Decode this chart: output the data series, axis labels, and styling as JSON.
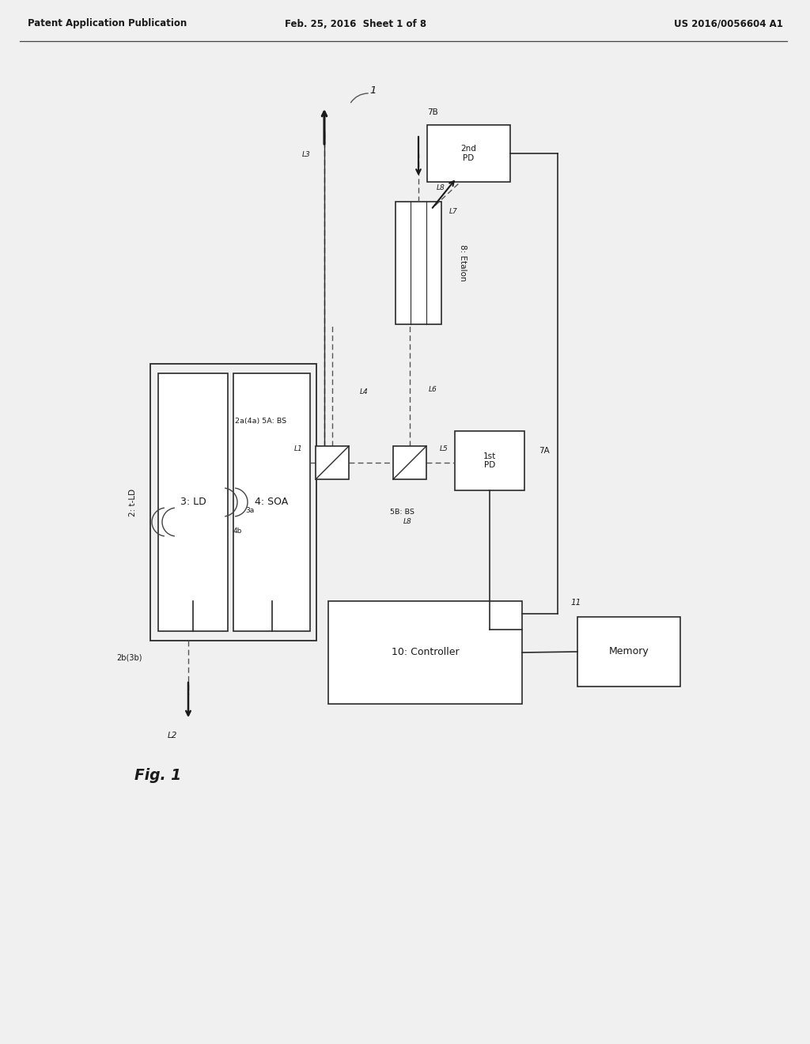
{
  "bg_color": "#f0f0f0",
  "header_left": "Patent Application Publication",
  "header_center": "Feb. 25, 2016  Sheet 1 of 8",
  "header_right": "US 2016/0056604 A1",
  "fig_label": "Fig. 1",
  "system_label": "1",
  "tld_label": "2: t-LD",
  "ld_box_label": "3: LD",
  "soa_box_label": "4: SOA",
  "bs1_label": "2a(4a) 5A: BS",
  "bs2_label": "5B: BS",
  "etalon_label": "8: Etalon",
  "pd1_label": "1st\nPD",
  "pd1_ref": "7A",
  "pd2_label": "2nd\nPD",
  "pd2_ref": "7B",
  "controller_label": "10: Controller",
  "memory_label": "Memory",
  "memory_ref": "11",
  "coupler1_label": "2b(3b)",
  "coupler2_label": "L2",
  "port_3a": "3a",
  "port_4b": "4b"
}
